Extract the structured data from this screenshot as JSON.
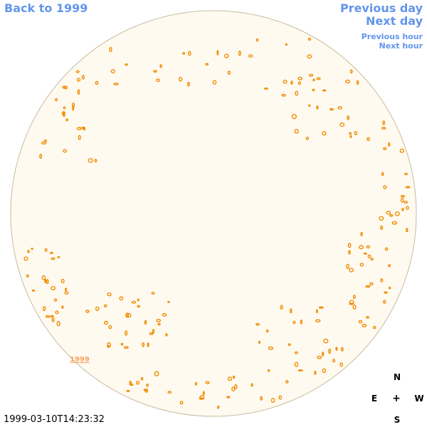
{
  "nav": {
    "back": "Back to 1999",
    "previous_day": "Previous day",
    "next_day": "Next day",
    "previous_hour": "Previous hour",
    "next_hour": "Next hour"
  },
  "year_label": "1999",
  "timestamp": "1999-03-10T14:23:32",
  "compass": {
    "north": "N",
    "east": "E",
    "center": "+",
    "west": "W",
    "south": "S"
  },
  "colors": {
    "link": "#6495ed",
    "disk_fill": "#fffaf0",
    "disk_outline": "#c8bba0",
    "feature": "#f08c00",
    "year_label": "#f4a460"
  }
}
